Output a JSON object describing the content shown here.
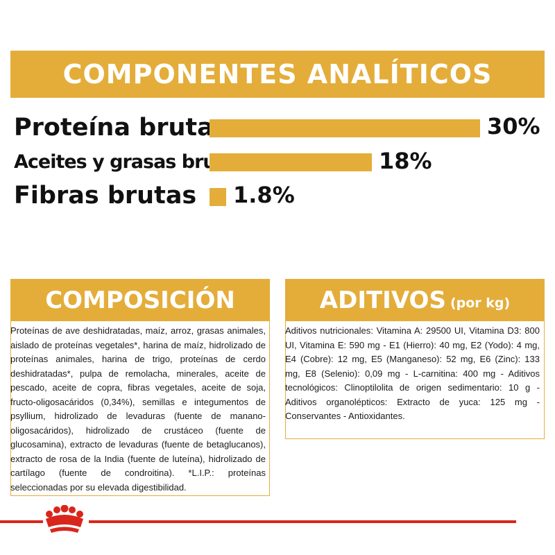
{
  "analytics": {
    "title": "COMPONENTES ANALÍTICOS",
    "items": [
      {
        "label": "Proteína bruta",
        "value": "30%",
        "amount": 30
      },
      {
        "label": "Aceites y grasas brutos",
        "value": "18%",
        "amount": 18
      },
      {
        "label": "Fibras brutas",
        "value": "1.8%",
        "amount": 1.8
      }
    ]
  },
  "composition": {
    "title": "COMPOSICIÓN",
    "text": "Proteínas de ave deshidratadas, maíz, arroz, grasas animales, aislado de proteínas vegetales*, harina de maíz, hidrolizado de proteínas animales, harina de trigo, proteínas de cerdo deshidratadas*, pulpa de remolacha, minerales, aceite de pescado, aceite de copra, fibras vegetales, aceite de soja, fructo-oligosacáridos (0,34%), semillas e integumentos de psyllium, hidrolizado de levaduras (fuente de manano-oligosacáridos), hidrolizado de crustáceo (fuente de glucosamina), extracto de levaduras (fuente de betaglucanos), extracto de rosa de la India (fuente de luteína), hidrolizado de cartílago (fuente de condroitina). *L.I.P.: proteínas seleccionadas por su elevada digestibilidad."
  },
  "additives": {
    "title": "ADITIVOS",
    "subtitle": "(por kg)",
    "text": "Aditivos nutricionales: Vitamina A: 29500 UI, Vitamina D3: 800 UI, Vitamina E: 590 mg - E1 (Hierro): 40 mg, E2 (Yodo): 4 mg, E4 (Cobre): 12 mg, E5 (Manganeso): 52 mg, E6 (Zinc): 133 mg, E8 (Selenio): 0,09 mg - L-carnitina: 400 mg - Aditivos tecnológicos: Clinoptilolita de origen sedimentario: 10 g - Aditivos organolépticos: Extracto de yuca: 125 mg - Conservantes - Antioxidantes."
  },
  "colors": {
    "accent": "#e4ad3a",
    "brand_red": "#d9261c"
  },
  "footer": {
    "logo_icon": "crown-icon"
  }
}
